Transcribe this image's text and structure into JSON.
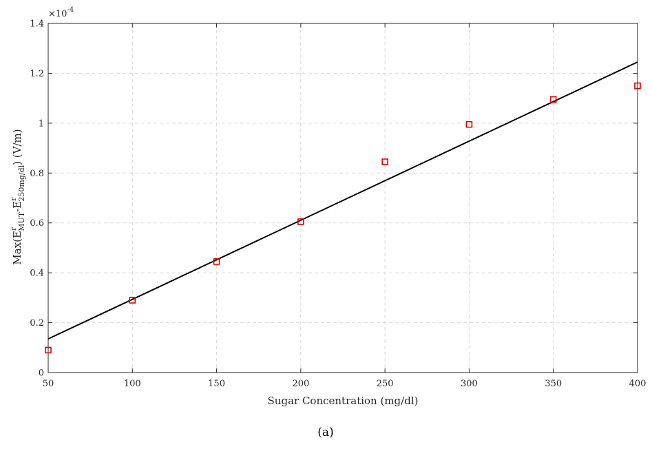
{
  "chart_data": {
    "type": "scatter",
    "xlabel": "Sugar Concentration (mg/dl)",
    "ylabel": {
      "prefix": "Max(E",
      "sup1": "r",
      "sub1": "MUT",
      "mid": "-E",
      "sup2": "r",
      "sub2": "250mg/dl",
      "suffix": ") (V/m)"
    },
    "y_multiplier": {
      "base": "×10",
      "exponent": "-4"
    },
    "caption": "(a)",
    "xlim": [
      50,
      400
    ],
    "ylim": [
      0,
      1.4
    ],
    "xticks": [
      50,
      100,
      150,
      200,
      250,
      300,
      350,
      400
    ],
    "yticks": [
      0,
      0.2,
      0.4,
      0.6,
      0.8,
      1,
      1.2,
      1.4
    ],
    "ytick_labels": [
      "0",
      "0.2",
      "0.4",
      "0.6",
      "0.8",
      "1",
      "1.2",
      "1.4"
    ],
    "grid": true,
    "series": [
      {
        "marker": "square",
        "color": "#e00000",
        "x": [
          50,
          100,
          150,
          200,
          250,
          300,
          350,
          400
        ],
        "y": [
          0.09,
          0.29,
          0.445,
          0.605,
          0.845,
          0.995,
          1.095,
          1.15
        ]
      },
      {
        "type": "line",
        "color": "#000000",
        "x": [
          50,
          400
        ],
        "y": [
          0.135,
          1.245
        ]
      }
    ]
  }
}
